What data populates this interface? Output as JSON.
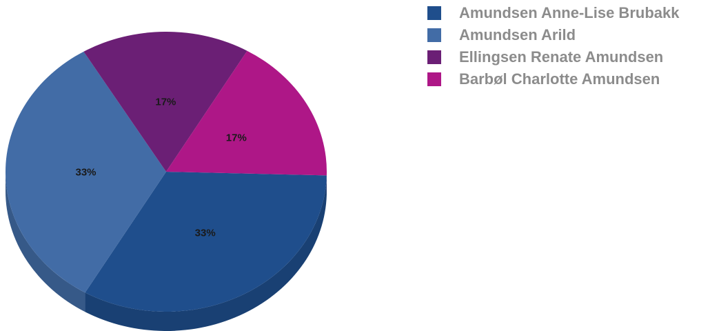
{
  "chart_data": {
    "type": "pie",
    "title": "",
    "slices": [
      {
        "name": "Amundsen Anne-Lise Brubakk",
        "value": 33,
        "label": "33%",
        "color": "#1f4e8c"
      },
      {
        "name": "Amundsen Arild",
        "value": 33,
        "label": "33%",
        "color": "#426ca6"
      },
      {
        "name": "Ellingsen Renate Amundsen",
        "value": 17,
        "label": "17%",
        "color": "#6b1f75"
      },
      {
        "name": "Barbøl Charlotte Amundsen",
        "value": 17,
        "label": "17%",
        "color": "#ae1787"
      }
    ],
    "legend_position": "top-right"
  }
}
